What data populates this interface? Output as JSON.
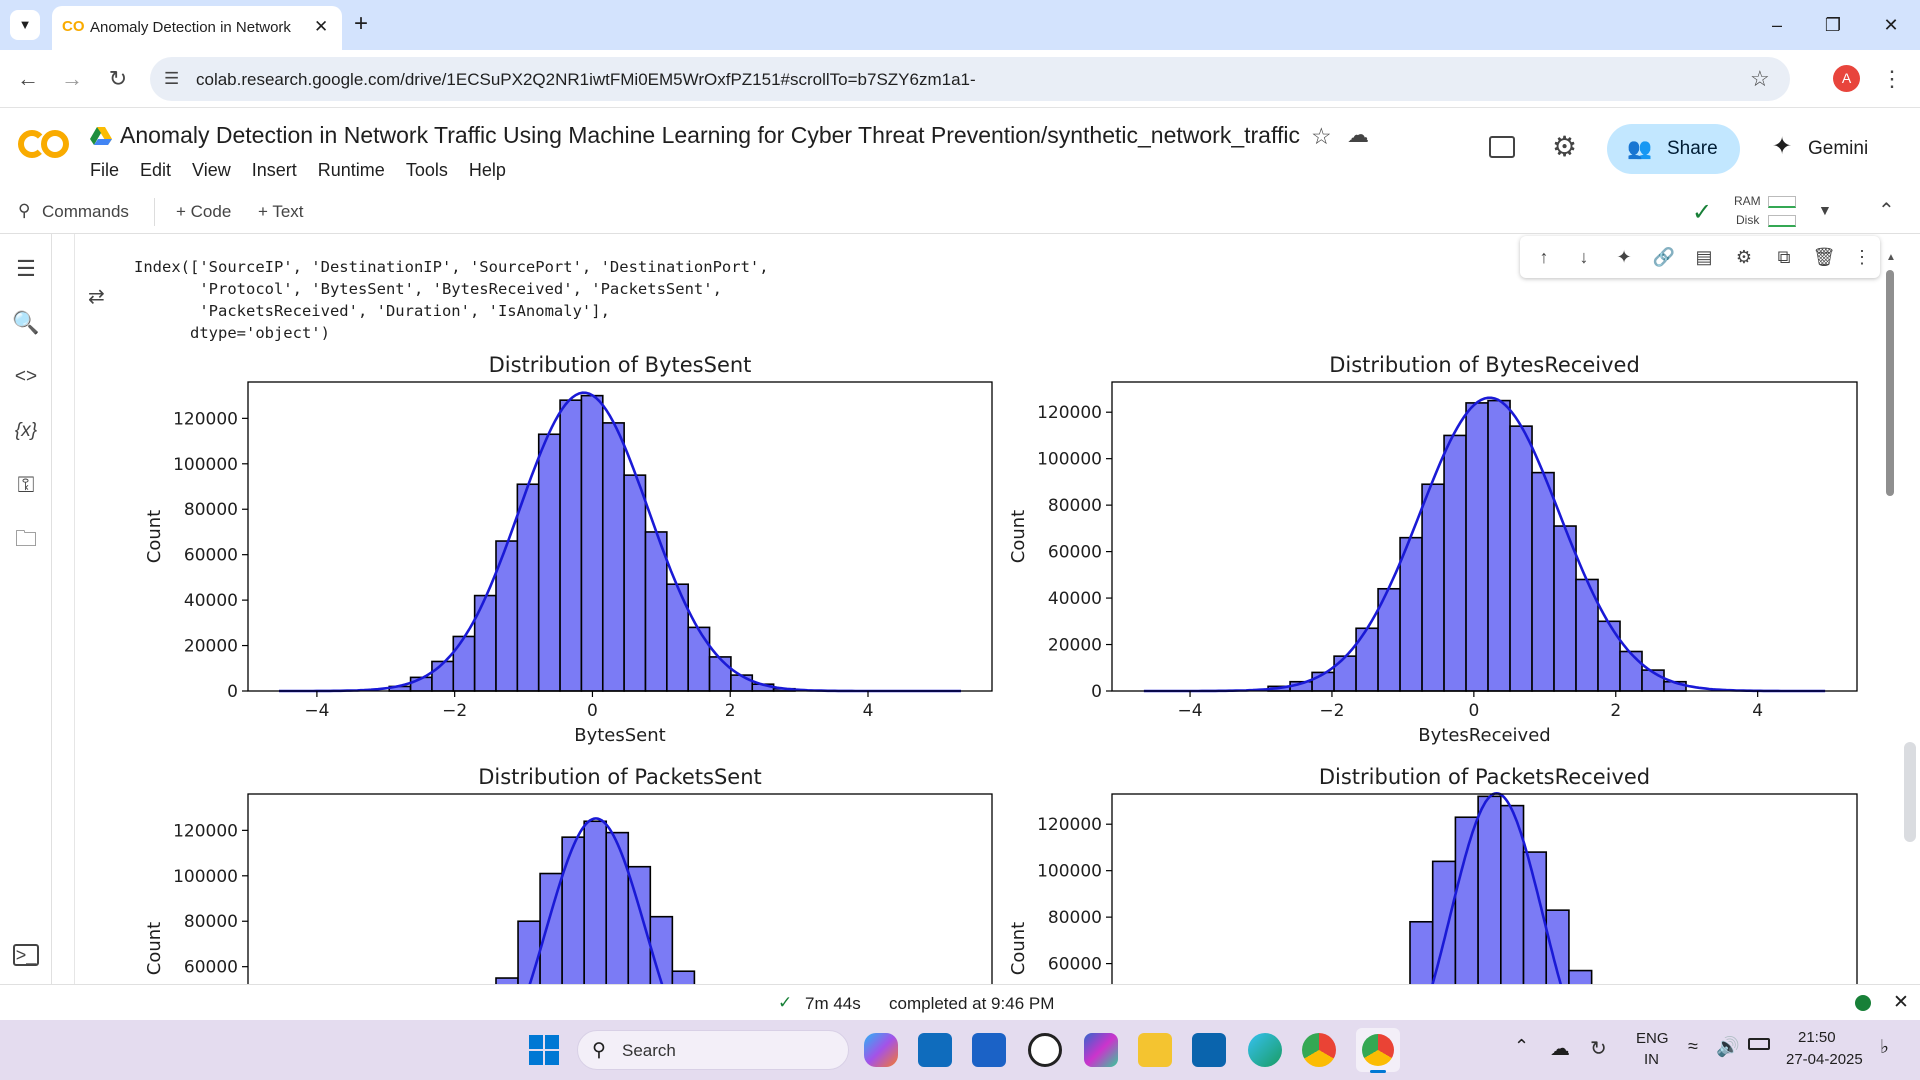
{
  "browser": {
    "tab_title": "Anomaly Detection in Network",
    "url": "colab.research.google.com/drive/1ECSuPX2Q2NR1iwtFMi0EM5WrOxfPZ151#scrollTo=b7SZY6zm1a1-",
    "avatar_letter": "A"
  },
  "colab": {
    "doc_title": "Anomaly Detection in Network Traffic Using Machine Learning for Cyber Threat Prevention/synthetic_network_traffic",
    "menu": [
      "File",
      "Edit",
      "View",
      "Insert",
      "Runtime",
      "Tools",
      "Help"
    ],
    "share_label": "Share",
    "gemini_label": "Gemini",
    "toolbar": {
      "commands": "Commands",
      "code": "+ Code",
      "text": "+ Text",
      "ram": "RAM",
      "disk": "Disk"
    }
  },
  "output": {
    "text": "Index(['SourceIP', 'DestinationIP', 'SourcePort', 'DestinationPort',\n       'Protocol', 'BytesSent', 'BytesReceived', 'PacketsSent',\n       'PacketsReceived', 'Duration', 'IsAnomaly'],\n      dtype='object')"
  },
  "chart_data": [
    {
      "type": "bar",
      "title": "Distribution of BytesSent",
      "xlabel": "BytesSent",
      "ylabel": "Count",
      "xlim": [
        -5,
        5.8
      ],
      "ylim": [
        0,
        136000
      ],
      "xticks": [
        "−4",
        "−2",
        "0",
        "2",
        "4"
      ],
      "yticks": [
        "0",
        "20000",
        "40000",
        "60000",
        "80000",
        "100000",
        "120000"
      ],
      "bin_edges": [
        -2.95,
        -2.64,
        -2.33,
        -2.02,
        -1.71,
        -1.4,
        -1.09,
        -0.78,
        -0.47,
        -0.16,
        0.15,
        0.46,
        0.77,
        1.08,
        1.39,
        1.7,
        2.01,
        2.32,
        2.63,
        2.94
      ],
      "values": [
        2000,
        6000,
        13000,
        24000,
        42000,
        66000,
        91000,
        113000,
        128000,
        130000,
        118000,
        95000,
        70000,
        47000,
        28000,
        15000,
        7000,
        3000,
        1000
      ],
      "kde": true,
      "bar_color": "#7b7bf5",
      "line_color": "#1a1ad6"
    },
    {
      "type": "bar",
      "title": "Distribution of BytesReceived",
      "xlabel": "BytesReceived",
      "ylabel": "Count",
      "xlim": [
        -5.1,
        5.4
      ],
      "ylim": [
        0,
        133000
      ],
      "xticks": [
        "−4",
        "−2",
        "0",
        "2",
        "4"
      ],
      "yticks": [
        "0",
        "20000",
        "40000",
        "60000",
        "80000",
        "100000",
        "120000"
      ],
      "bin_edges": [
        -2.9,
        -2.59,
        -2.28,
        -1.97,
        -1.66,
        -1.35,
        -1.04,
        -0.73,
        -0.42,
        -0.11,
        0.2,
        0.51,
        0.82,
        1.13,
        1.44,
        1.75,
        2.06,
        2.37,
        2.68,
        2.99
      ],
      "values": [
        2000,
        4000,
        8000,
        15000,
        27000,
        44000,
        66000,
        89000,
        110000,
        124000,
        125000,
        114000,
        94000,
        71000,
        48000,
        30000,
        17000,
        9000,
        4000
      ],
      "kde": true,
      "bar_color": "#7b7bf5",
      "line_color": "#1a1ad6"
    },
    {
      "type": "bar",
      "title": "Distribution of PacketsSent",
      "xlabel": "",
      "ylabel": "Count",
      "xlim": [
        -5,
        5.8
      ],
      "ylim": [
        0,
        136000
      ],
      "yticks": [
        "60000",
        "80000",
        "100000",
        "120000"
      ],
      "bin_edges": [
        -1.4,
        -1.08,
        -0.76,
        -0.44,
        -0.12,
        0.2,
        0.52,
        0.84,
        1.16,
        1.48
      ],
      "values": [
        55000,
        80000,
        101000,
        117000,
        124000,
        119000,
        104000,
        82000,
        58000
      ],
      "kde": true,
      "bar_color": "#7b7bf5",
      "line_color": "#1a1ad6"
    },
    {
      "type": "bar",
      "title": "Distribution of PacketsReceived",
      "xlabel": "",
      "ylabel": "Count",
      "xlim": [
        -5.1,
        5.4
      ],
      "ylim": [
        0,
        133000
      ],
      "yticks": [
        "60000",
        "80000",
        "100000",
        "120000"
      ],
      "bin_edges": [
        -0.9,
        -0.58,
        -0.26,
        0.06,
        0.38,
        0.7,
        1.02,
        1.34,
        1.66
      ],
      "values": [
        78000,
        104000,
        123000,
        132000,
        128000,
        108000,
        83000,
        57000
      ],
      "kde": true,
      "bar_color": "#7b7bf5",
      "line_color": "#1a1ad6"
    }
  ],
  "status": {
    "elapsed": "7m 44s",
    "completed": "completed at 9:46 PM"
  },
  "taskbar": {
    "search": "Search",
    "lang1": "ENG",
    "lang2": "IN",
    "time": "21:50",
    "date": "27-04-2025"
  }
}
